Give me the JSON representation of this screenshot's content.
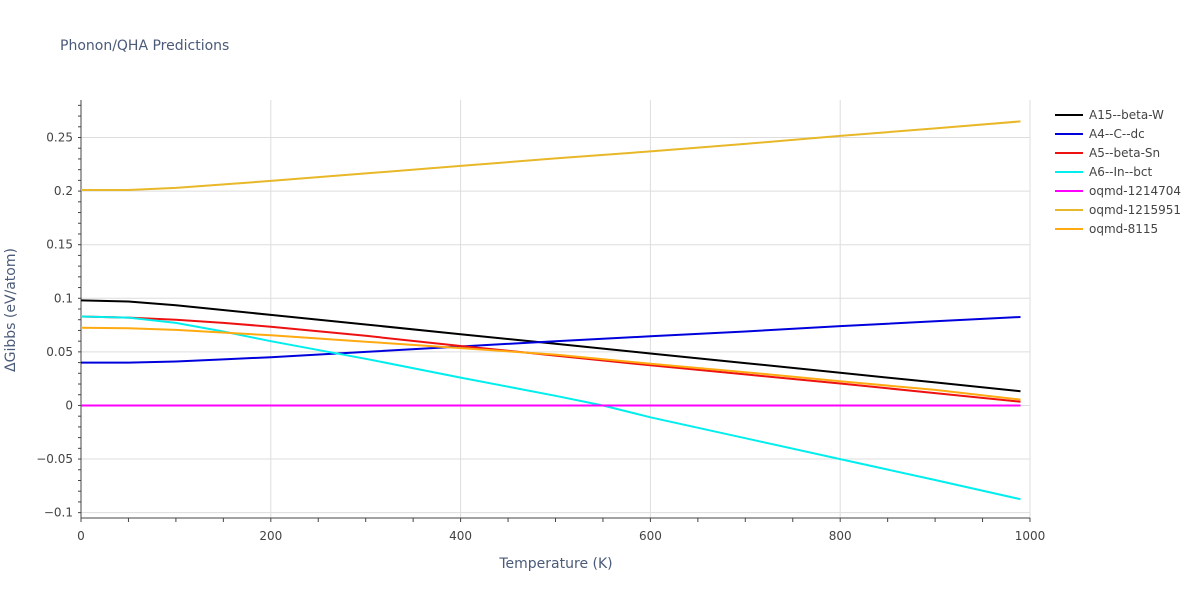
{
  "chart_data": {
    "type": "line",
    "title": "Phonon/QHA Predictions",
    "xlabel": "Temperature (K)",
    "ylabel": "ΔGibbs (eV/atom)",
    "xlim": [
      0,
      1000
    ],
    "ylim": [
      -0.105,
      0.285
    ],
    "x_ticks": [
      0,
      200,
      400,
      600,
      800,
      1000
    ],
    "x_tick_labels": [
      "0",
      "200",
      "400",
      "600",
      "800",
      "1000"
    ],
    "y_ticks": [
      -0.1,
      -0.05,
      0,
      0.05,
      0.1,
      0.15,
      0.2,
      0.25
    ],
    "y_tick_labels": [
      "−0.1",
      "−0.05",
      "0",
      "0.05",
      "0.1",
      "0.15",
      "0.2",
      "0.25"
    ],
    "grid": true,
    "legend_position": "right",
    "series": [
      {
        "name": "A15--beta-W",
        "color": "#000000",
        "x": [
          0,
          50,
          100,
          200,
          300,
          400,
          500,
          600,
          700,
          800,
          900,
          990
        ],
        "y": [
          0.098,
          0.097,
          0.0935,
          0.0845,
          0.0755,
          0.0665,
          0.0575,
          0.0485,
          0.0395,
          0.0305,
          0.0215,
          0.0133
        ]
      },
      {
        "name": "A4--C--dc",
        "color": "#0000dd",
        "x": [
          0,
          50,
          100,
          150,
          200,
          300,
          400,
          500,
          600,
          700,
          800,
          900,
          990
        ],
        "y": [
          0.04,
          0.04,
          0.041,
          0.043,
          0.045,
          0.05,
          0.055,
          0.06,
          0.0645,
          0.069,
          0.074,
          0.0785,
          0.0825
        ]
      },
      {
        "name": "A5--beta-Sn",
        "color": "#ee1111",
        "x": [
          0,
          50,
          100,
          150,
          200,
          300,
          400,
          500,
          600,
          700,
          800,
          900,
          990
        ],
        "y": [
          0.083,
          0.082,
          0.08,
          0.077,
          0.0735,
          0.065,
          0.0555,
          0.0465,
          0.0375,
          0.029,
          0.0205,
          0.0115,
          0.0035
        ]
      },
      {
        "name": "A6--In--bct",
        "color": "#00eeee",
        "x": [
          0,
          50,
          100,
          150,
          200,
          300,
          400,
          500,
          550,
          600,
          700,
          800,
          900,
          990
        ],
        "y": [
          0.083,
          0.082,
          0.077,
          0.069,
          0.06,
          0.0435,
          0.026,
          0.009,
          0.0,
          -0.011,
          -0.0305,
          -0.05,
          -0.0695,
          -0.0875
        ]
      },
      {
        "name": "oqmd-1214704",
        "color": "#ff00ff",
        "x": [
          0,
          990
        ],
        "y": [
          0.0,
          0.0
        ]
      },
      {
        "name": "oqmd-1215951",
        "color": "#e8b828",
        "x": [
          0,
          50,
          100,
          200,
          300,
          400,
          500,
          600,
          700,
          800,
          900,
          990
        ],
        "y": [
          0.201,
          0.201,
          0.203,
          0.2095,
          0.2165,
          0.2235,
          0.2305,
          0.237,
          0.244,
          0.2515,
          0.2585,
          0.265
        ]
      },
      {
        "name": "oqmd-8115",
        "color": "#ffaa11",
        "x": [
          0,
          50,
          100,
          200,
          300,
          400,
          500,
          600,
          700,
          800,
          900,
          990
        ],
        "y": [
          0.0725,
          0.072,
          0.0705,
          0.0655,
          0.0595,
          0.0535,
          0.0475,
          0.039,
          0.031,
          0.0225,
          0.0145,
          0.0055
        ]
      }
    ]
  }
}
